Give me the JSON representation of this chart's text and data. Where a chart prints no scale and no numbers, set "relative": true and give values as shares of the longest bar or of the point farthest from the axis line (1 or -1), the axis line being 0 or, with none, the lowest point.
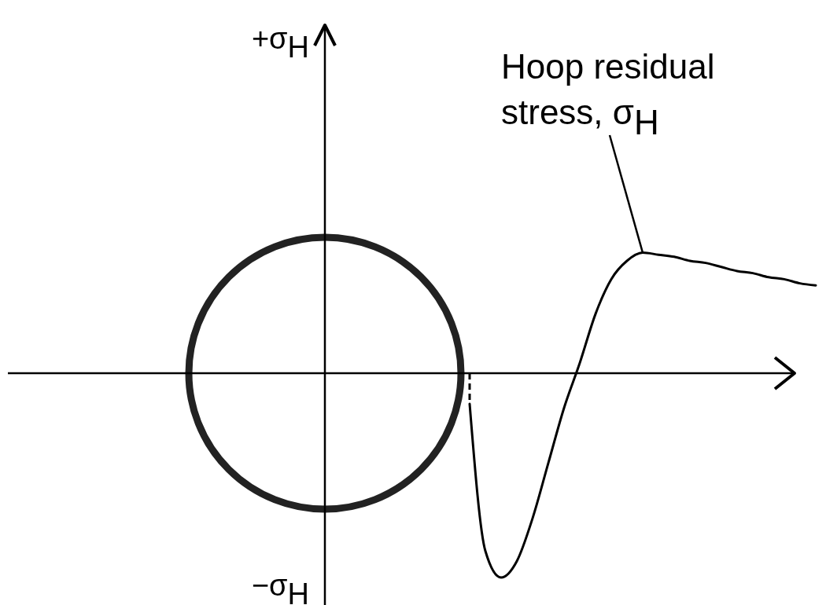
{
  "chart_data": {
    "type": "line",
    "relative": true,
    "categories": [
      null,
      null,
      null,
      null,
      null,
      null,
      null,
      null,
      null,
      null,
      null,
      null,
      null,
      null,
      null,
      null,
      null,
      null,
      null,
      null,
      null,
      null,
      null,
      null,
      null,
      null,
      null,
      null,
      null,
      null,
      null,
      null,
      null,
      null,
      null,
      null,
      null,
      null,
      null,
      null,
      null,
      null,
      null,
      null,
      null,
      null,
      null,
      null,
      null,
      null,
      null,
      null
    ],
    "series": [
      {
        "name": "Hoop residual stress, σ$_{H}$",
        "color": "#000000",
        "values": [
          null,
          null,
          null,
          null,
          null,
          null,
          null,
          null,
          null,
          null,
          null,
          null,
          null,
          null,
          null,
          null,
          null,
          null,
          null,
          null,
          null,
          null,
          null,
          null,
          null,
          null,
          null,
          null,
          null,
          -0.15,
          -0.87,
          -1.0,
          -0.92,
          -0.71,
          -0.44,
          -0.17,
          0.05,
          0.29,
          0.46,
          0.55,
          0.59,
          0.58,
          0.57,
          0.55,
          0.54,
          0.52,
          0.5,
          0.49,
          0.47,
          0.46,
          0.44,
          0.43
        ]
      }
    ],
    "annotations": [
      "+σ$_{H}$",
      "−σ$_{H}$"
    ]
  }
}
